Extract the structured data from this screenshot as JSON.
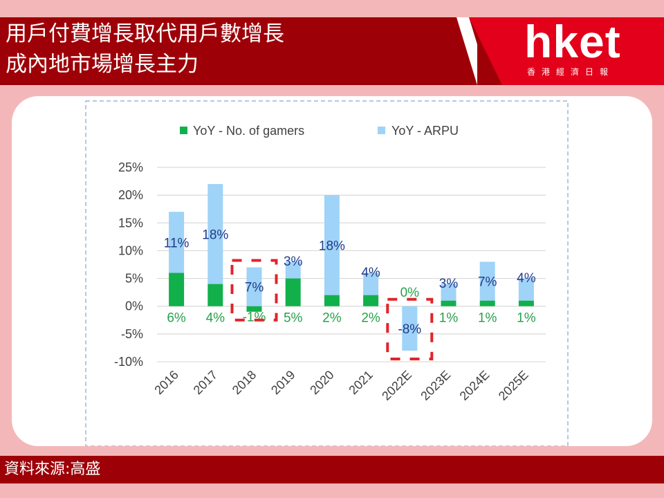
{
  "header": {
    "title_line1": "用戶付費增長取代用戶數增長",
    "title_line2": "成內地市場增長主力",
    "logo_text": "hket",
    "logo_subtitle": "香港經濟日報"
  },
  "footer": {
    "source": "資料來源:高盛"
  },
  "colors": {
    "gamers": "#11b04b",
    "arpu": "#9fd3f7",
    "label_gamers": "#27a04b",
    "label_arpu": "#1f3a8a",
    "highlight": "#e0242b",
    "header_bg": "#9e0008",
    "logo_bg": "#e2001a",
    "page_bg": "#f4b7b9"
  },
  "chart_data": {
    "type": "bar",
    "stacked": true,
    "categories": [
      "2016",
      "2017",
      "2018",
      "2019",
      "2020",
      "2021",
      "2022E",
      "2023E",
      "2024E",
      "2025E"
    ],
    "series": [
      {
        "name": "YoY - No. of gamers",
        "values": [
          6,
          4,
          -1,
          5,
          2,
          2,
          0,
          1,
          1,
          1
        ],
        "labels": [
          "6%",
          "4%",
          "-1%",
          "5%",
          "2%",
          "2%",
          "0%",
          "1%",
          "1%",
          "1%"
        ]
      },
      {
        "name": "YoY - ARPU",
        "values": [
          11,
          18,
          7,
          3,
          18,
          4,
          -8,
          3,
          7,
          4
        ],
        "labels": [
          "11%",
          "18%",
          "7%",
          "3%",
          "18%",
          "4%",
          "-8%",
          "3%",
          "7%",
          "4%"
        ]
      }
    ],
    "yticks": [
      "25%",
      "20%",
      "15%",
      "10%",
      "5%",
      "0%",
      "-5%",
      "-10%"
    ],
    "ylim": [
      -10,
      25
    ],
    "grid": true,
    "legend_position": "top",
    "highlighted_categories": [
      "2018",
      "2022E"
    ],
    "title": "",
    "xlabel": "",
    "ylabel": ""
  }
}
